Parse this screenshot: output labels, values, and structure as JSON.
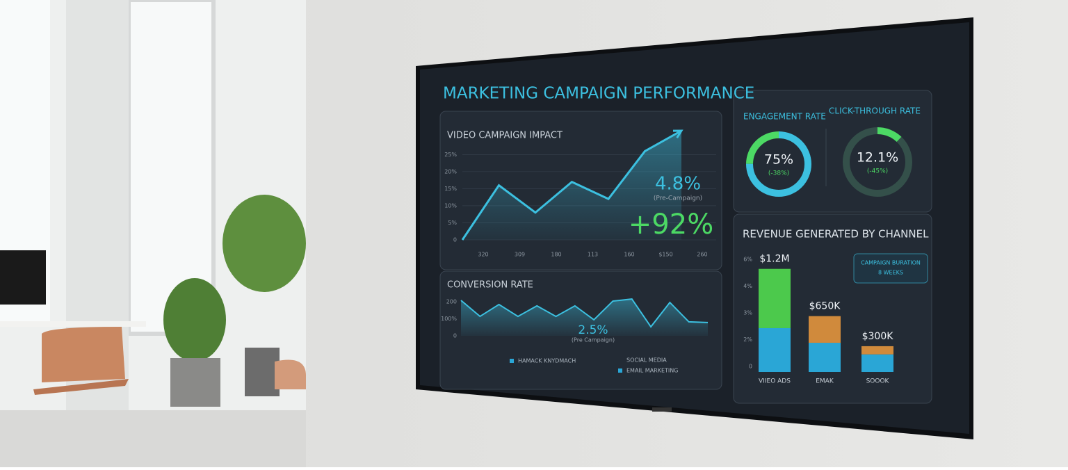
{
  "title": "MARKETING CAMPAIGN PERFORMANCE",
  "chart_data": [
    {
      "type": "line",
      "title": "VIDEO CAMPAIGN IMPACT",
      "categories": [
        "320",
        "309",
        "180",
        "113",
        "160",
        "$150",
        "260"
      ],
      "values": [
        0,
        16,
        8,
        17,
        12,
        26,
        32
      ],
      "color": "#3cc0e0",
      "ylim": [
        0,
        32
      ],
      "yticks": [
        0,
        {
          "value": 5,
          "label": "5%"
        },
        {
          "value": 10,
          "label": "10%"
        },
        {
          "value": 15,
          "label": "15%"
        },
        {
          "value": 20,
          "label": "20%"
        },
        {
          "value": 25,
          "label": "25%"
        }
      ],
      "grid": true,
      "annotations": [
        "4.8%",
        "(Pre-Campaign)",
        "+92%"
      ]
    },
    {
      "type": "area",
      "title": "CONVERSION RATE",
      "categories": [
        null,
        null,
        null,
        null,
        null,
        null,
        null,
        null,
        null,
        null,
        null,
        null,
        null,
        null
      ],
      "values": [
        208,
        114,
        184,
        114,
        176,
        114,
        176,
        94,
        204,
        216,
        53,
        196,
        82,
        78
      ],
      "color": "#3cc0e0",
      "ylim": [
        0,
        200
      ],
      "yticks": [
        0,
        {
          "value": 100,
          "label": "100%"
        },
        200
      ],
      "annotations": [
        "2.5%",
        "(Pre Campaign)"
      ],
      "legend": [
        "HAMACK KNYDMACH",
        "SOCIAL MEDIA",
        "EMAIL MARKETING"
      ]
    },
    {
      "type": "donut",
      "title": "ENGAGEMENT RATE",
      "value": 75,
      "value_label": "75%",
      "change": "(-38%)",
      "colors": [
        "#3cc0e0",
        "#4cd964"
      ]
    },
    {
      "type": "donut",
      "title": "CLICK-THROUGH RATE",
      "value": 12.1,
      "value_label": "12.1%",
      "change": "(-45%)",
      "colors": [
        "#4cd964",
        "#34504a"
      ]
    },
    {
      "type": "stacked_bar",
      "title": "REVENUE GENERATED BY CHANNEL",
      "categories": [
        "VIIEO ADS",
        "EMAK",
        "SOOOK"
      ],
      "series": [
        {
          "color": "#2aa6d6",
          "values": [
            510000,
            340000,
            205000
          ]
        },
        {
          "colors": [
            "#4cc94c",
            "#d08a3c",
            "#d08a3c"
          ],
          "values": [
            690000,
            310000,
            95000
          ]
        }
      ],
      "value_labels": [
        "$1.2M",
        "$650K",
        "$300K"
      ],
      "ylim": [
        0,
        1400000
      ],
      "axis_labels": [
        "6%",
        "4%",
        "3%",
        "2%",
        "0"
      ],
      "note_title": "CAMPAIGN BURATION",
      "note_value": "8 WEEKS"
    }
  ]
}
